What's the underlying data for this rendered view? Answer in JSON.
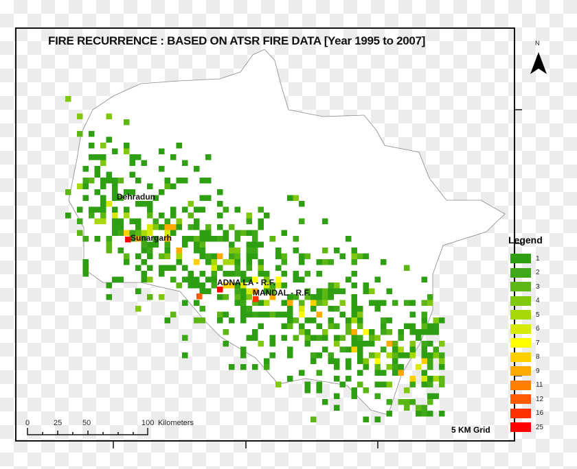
{
  "title": "FIRE RECURRENCE : BASED ON ATSR FIRE DATA [Year 1995 to 2007]",
  "north_arrow": "N",
  "places": [
    {
      "name": "Dehradun"
    },
    {
      "name": "Sunargarh"
    },
    {
      "name": "ADNA LA -  R.F."
    },
    {
      "name": "MANDAL - R.F."
    }
  ],
  "legend": {
    "title": "Legend",
    "items": [
      {
        "label": "1",
        "color": "#2e9e12"
      },
      {
        "label": "2",
        "color": "#3fa818"
      },
      {
        "label": "3",
        "color": "#5cb614"
      },
      {
        "label": "4",
        "color": "#80c80e"
      },
      {
        "label": "5",
        "color": "#a6d80a"
      },
      {
        "label": "6",
        "color": "#d6ea06"
      },
      {
        "label": "7",
        "color": "#ffff00"
      },
      {
        "label": "8",
        "color": "#ffd000"
      },
      {
        "label": "9",
        "color": "#ffaa00"
      },
      {
        "label": "11",
        "color": "#ff8000"
      },
      {
        "label": "12",
        "color": "#ff5a00"
      },
      {
        "label": "16",
        "color": "#ff3000"
      },
      {
        "label": "25",
        "color": "#ff0000"
      }
    ]
  },
  "grid_note": "5 KM Grid",
  "scale_bar": {
    "ticks": [
      "0",
      "25",
      "50",
      "100"
    ],
    "unit": "Kilometers"
  }
}
